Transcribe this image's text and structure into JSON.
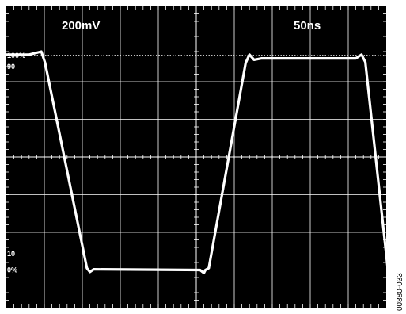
{
  "chart_data": {
    "type": "line",
    "title": "",
    "volts_per_div": "200mV",
    "time_per_div": "50ns",
    "markers": {
      "pct_100": "100%",
      "pct_90": "90",
      "pct_10": "10",
      "pct_0": "0%"
    },
    "grid": true,
    "divisions": {
      "x": 10,
      "y": 8
    },
    "xlim": [
      0,
      10
    ],
    "ylim": [
      0,
      8
    ],
    "levels": {
      "pct_100": 6.7,
      "pct_90": 6.55,
      "pct_10": 1.35,
      "pct_0": 1.0
    },
    "series": [
      {
        "x": [
          0,
          0.6,
          0.92,
          1.02,
          2.12,
          2.2,
          2.3,
          5.1,
          5.2,
          5.24,
          5.33,
          6.3,
          6.4,
          6.52,
          6.72,
          9.2,
          9.35,
          9.45,
          10.05
        ],
        "y": [
          6.72,
          6.72,
          6.8,
          6.5,
          1.05,
          0.95,
          1.02,
          1.0,
          0.92,
          1.0,
          1.05,
          6.5,
          6.72,
          6.58,
          6.62,
          6.62,
          6.72,
          6.52,
          0.95
        ]
      }
    ]
  },
  "figure_id": "00880-033"
}
